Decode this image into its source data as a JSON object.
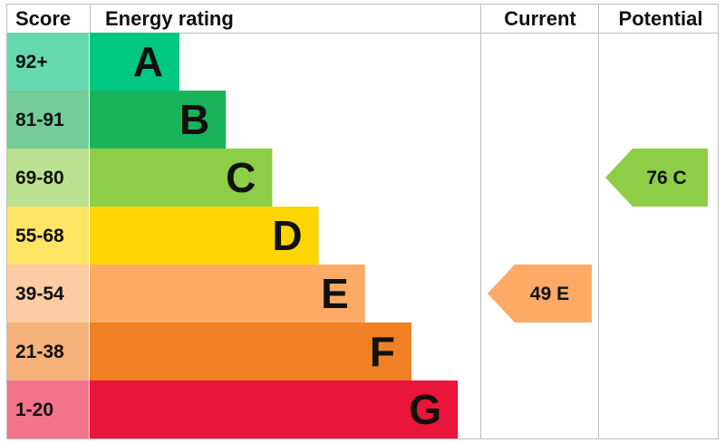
{
  "headers": {
    "score": "Score",
    "energy_rating": "Energy rating",
    "current": "Current",
    "potential": "Potential"
  },
  "chart_data": {
    "type": "bar",
    "title": "",
    "categories": [
      "A",
      "B",
      "C",
      "D",
      "E",
      "F",
      "G"
    ],
    "score_ranges": [
      "92+",
      "81-91",
      "69-80",
      "55-68",
      "39-54",
      "21-38",
      "1-20"
    ],
    "band_colors": [
      "#00c781",
      "#19b459",
      "#8dce46",
      "#ffd500",
      "#fcaa65",
      "#ef8023",
      "#e9153b"
    ],
    "score_cell_colors": [
      "#66d8b0",
      "#74cc98",
      "#bbe291",
      "#ffe566",
      "#fdcca3",
      "#f5b27a",
      "#f2738a"
    ],
    "current": {
      "value": 49,
      "band": "E",
      "label": "49 E",
      "color": "#fcaa65"
    },
    "potential": {
      "value": 76,
      "band": "C",
      "label": "76 C",
      "color": "#8dce46"
    }
  }
}
